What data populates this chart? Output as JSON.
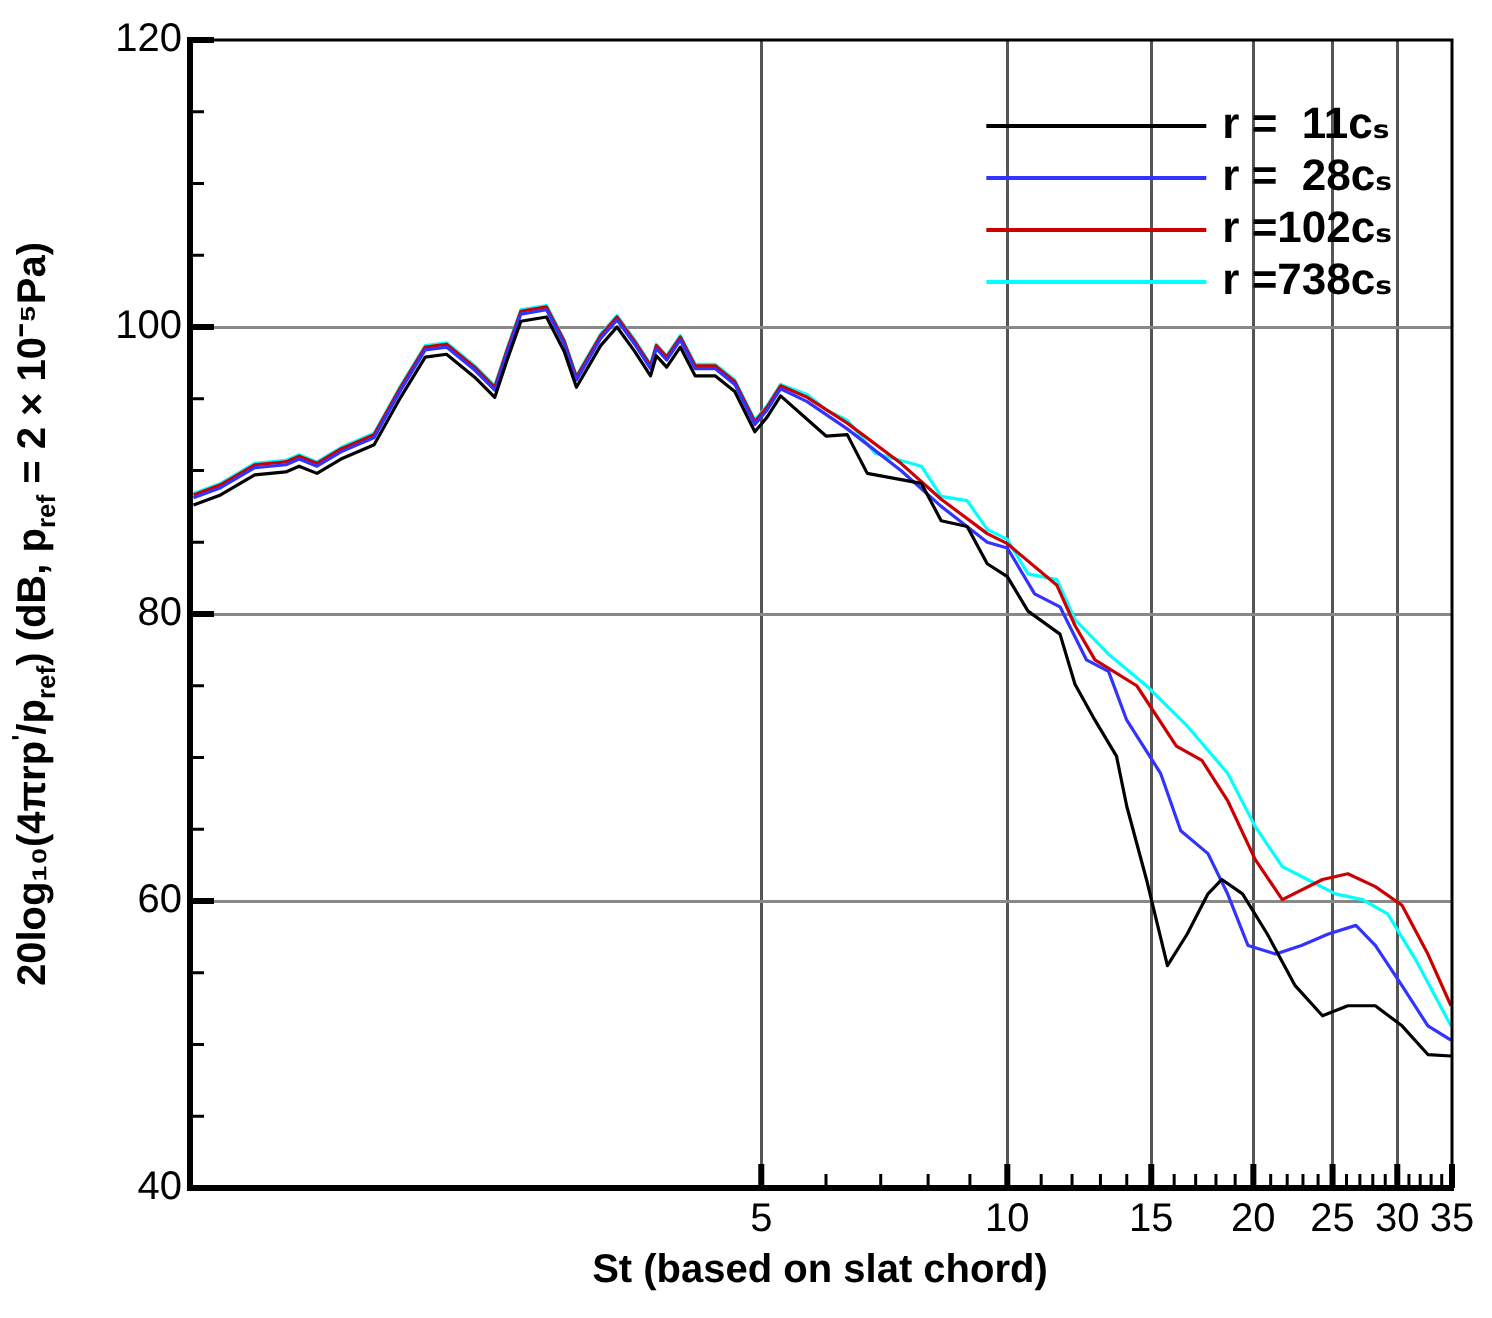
{
  "chart_data": {
    "type": "line",
    "xlabel": "St (based on slat chord)",
    "ylabel": "20log₁₀(4πrp$^{'}$/p$_{ref}$) (dB, p$_{ref}$ = 2 × 10⁻⁵Pa)",
    "log": "x",
    "grid": true,
    "legend": "top right",
    "marker": "none",
    "line_style": "solid",
    "xlim": [
      1,
      35
    ],
    "xticks": [
      5,
      {
        "value": 6,
        "label": null
      },
      {
        "value": 7,
        "label": null
      },
      {
        "value": 8,
        "label": null
      },
      {
        "value": 9,
        "label": null
      },
      10,
      {
        "value": 11,
        "label": null
      },
      {
        "value": 12,
        "label": null
      },
      {
        "value": 13,
        "label": null
      },
      {
        "value": 14,
        "label": null
      },
      15,
      {
        "value": 16,
        "label": null
      },
      {
        "value": 17,
        "label": null
      },
      {
        "value": 18,
        "label": null
      },
      {
        "value": 19,
        "label": null
      },
      20,
      {
        "value": 21,
        "label": null
      },
      {
        "value": 22,
        "label": null
      },
      {
        "value": 23,
        "label": null
      },
      {
        "value": 24,
        "label": null
      },
      25,
      {
        "value": 26,
        "label": null
      },
      {
        "value": 27,
        "label": null
      },
      {
        "value": 28,
        "label": null
      },
      {
        "value": 29,
        "label": null
      },
      30,
      {
        "value": 31,
        "label": null
      },
      {
        "value": 32,
        "label": null
      },
      {
        "value": 33,
        "label": null
      },
      {
        "value": 34,
        "label": null
      },
      35
    ],
    "ylim": [
      40,
      120
    ],
    "yticks": [
      40,
      {
        "value": 45,
        "label": null
      },
      {
        "value": 50,
        "label": null
      },
      {
        "value": 55,
        "label": null
      },
      60,
      {
        "value": 65,
        "label": null
      },
      {
        "value": 70,
        "label": null
      },
      {
        "value": 75,
        "label": null
      },
      80,
      {
        "value": 85,
        "label": null
      },
      {
        "value": 90,
        "label": null
      },
      {
        "value": 95,
        "label": null
      },
      100,
      {
        "value": 105,
        "label": null
      },
      {
        "value": 110,
        "label": null
      },
      {
        "value": 115,
        "label": null
      },
      120
    ],
    "series": [
      {
        "name": "r =  11cₛ",
        "color": "#000000",
        "x": [
          1.01,
          1.09,
          1.2,
          1.31,
          1.36,
          1.43,
          1.53,
          1.68,
          1.81,
          1.94,
          2.06,
          2.23,
          2.36,
          2.44,
          2.54,
          2.73,
          2.87,
          2.97,
          3.18,
          3.33,
          3.5,
          3.66,
          3.72,
          3.83,
          3.98,
          4.15,
          4.39,
          4.64,
          4.91,
          5.08,
          5.28,
          6.0,
          6.37,
          6.74,
          7.85,
          8.3,
          8.93,
          9.45,
          10,
          10.6,
          11.6,
          12.1,
          12.8,
          13.6,
          14.0,
          14.8,
          15.7,
          16.6,
          17.6,
          18.3,
          19.4,
          20.8,
          22.5,
          24.3,
          26.1,
          28.2,
          30.4,
          32.7,
          34.9
        ],
        "values": [
          87.6,
          88.3,
          89.7,
          89.9,
          90.3,
          89.8,
          90.8,
          91.8,
          95.1,
          97.9,
          98.1,
          96.5,
          95.1,
          97.6,
          100.4,
          100.7,
          98.3,
          95.8,
          98.7,
          100.0,
          98.3,
          96.6,
          98.0,
          97.2,
          98.6,
          96.6,
          96.6,
          95.5,
          92.7,
          93.7,
          95.2,
          92.4,
          92.5,
          89.8,
          89.1,
          86.5,
          86.1,
          83.5,
          82.6,
          80.2,
          78.6,
          75.1,
          72.6,
          70.1,
          66.6,
          61.5,
          55.5,
          57.7,
          60.5,
          61.5,
          60.5,
          57.7,
          54.1,
          52.0,
          52.7,
          52.7,
          51.3,
          49.3,
          49.2
        ]
      },
      {
        "name": "r =  28cₛ",
        "color": "#3333ff",
        "x": [
          1.01,
          1.09,
          1.2,
          1.31,
          1.36,
          1.43,
          1.53,
          1.68,
          1.81,
          1.94,
          2.06,
          2.23,
          2.36,
          2.44,
          2.54,
          2.73,
          2.87,
          2.97,
          3.18,
          3.33,
          3.5,
          3.66,
          3.72,
          3.83,
          3.98,
          4.15,
          4.39,
          4.64,
          4.91,
          5.08,
          5.28,
          5.69,
          6.37,
          7.41,
          8.3,
          9.45,
          10,
          10.8,
          11.6,
          12.5,
          13.3,
          14.0,
          15.4,
          16.3,
          17.6,
          18.6,
          19.7,
          21.3,
          22.9,
          24.7,
          26.7,
          28.2,
          30.4,
          32.7,
          34.9
        ],
        "values": [
          88.1,
          88.8,
          90.2,
          90.4,
          90.8,
          90.3,
          91.3,
          92.3,
          95.6,
          98.4,
          98.6,
          97.0,
          95.6,
          98.1,
          100.9,
          101.2,
          98.8,
          96.3,
          99.2,
          100.5,
          98.8,
          97.1,
          98.5,
          97.7,
          99.1,
          97.1,
          97.1,
          96.0,
          93.2,
          94.2,
          95.7,
          94.8,
          92.9,
          90.0,
          87.5,
          85.0,
          84.6,
          81.4,
          80.5,
          76.8,
          76.0,
          72.6,
          68.9,
          64.9,
          63.3,
          60.5,
          56.9,
          56.3,
          56.9,
          57.7,
          58.3,
          56.9,
          54.1,
          51.3,
          50.3
        ]
      },
      {
        "name": "r =102cₛ",
        "color": "#cc0000",
        "x": [
          1.01,
          1.09,
          1.2,
          1.31,
          1.36,
          1.43,
          1.53,
          1.68,
          1.81,
          1.94,
          2.06,
          2.23,
          2.36,
          2.44,
          2.54,
          2.73,
          2.87,
          2.97,
          3.18,
          3.33,
          3.5,
          3.66,
          3.72,
          3.83,
          3.98,
          4.15,
          4.39,
          4.64,
          4.91,
          5.08,
          5.28,
          5.69,
          6.37,
          7.41,
          8.3,
          9.45,
          10,
          11.5,
          12.1,
          12.8,
          14.4,
          16.1,
          17.3,
          18.6,
          20.1,
          21.7,
          24.3,
          26.1,
          28.2,
          30.4,
          32.7,
          34.9
        ],
        "values": [
          88.3,
          89.0,
          90.4,
          90.6,
          91.0,
          90.5,
          91.5,
          92.5,
          95.8,
          98.6,
          98.8,
          97.2,
          95.8,
          98.3,
          101.1,
          101.4,
          99.0,
          96.5,
          99.4,
          100.7,
          99.0,
          97.3,
          98.7,
          97.9,
          99.3,
          97.3,
          97.3,
          96.2,
          93.4,
          94.4,
          95.9,
          95.1,
          93.3,
          90.5,
          88.0,
          85.6,
          84.9,
          82.0,
          79.2,
          76.8,
          75.0,
          70.8,
          69.8,
          67.0,
          62.9,
          60.1,
          61.5,
          61.9,
          61.0,
          59.7,
          56.3,
          52.7
        ]
      },
      {
        "name": "r =738cₛ",
        "color": "#00ffff",
        "x": [
          1.01,
          1.09,
          1.2,
          1.31,
          1.36,
          1.43,
          1.53,
          1.68,
          1.81,
          1.94,
          2.06,
          2.23,
          2.36,
          2.44,
          2.54,
          2.73,
          2.87,
          2.97,
          3.18,
          3.33,
          3.5,
          3.66,
          3.72,
          3.83,
          3.98,
          4.15,
          4.39,
          4.64,
          4.91,
          5.08,
          5.28,
          5.69,
          6.01,
          6.37,
          6.89,
          7.41,
          7.85,
          8.3,
          8.93,
          9.45,
          10,
          10.6,
          11.5,
          12.1,
          13.3,
          14.8,
          16.6,
          18.6,
          20.1,
          21.7,
          23.3,
          25.2,
          27.2,
          29.2,
          31.6,
          34.9
        ],
        "values": [
          88.4,
          89.1,
          90.5,
          90.7,
          91.1,
          90.6,
          91.6,
          92.6,
          95.9,
          98.7,
          98.9,
          97.3,
          95.9,
          98.4,
          101.2,
          101.5,
          99.1,
          96.6,
          99.5,
          100.8,
          99.1,
          97.4,
          98.8,
          98.0,
          99.4,
          97.4,
          97.4,
          96.3,
          93.5,
          94.5,
          96.0,
          95.3,
          94.2,
          93.5,
          91.2,
          90.7,
          90.3,
          88.2,
          87.9,
          85.9,
          85.2,
          82.8,
          82.4,
          79.6,
          77.2,
          75.0,
          72.2,
          68.9,
          65.2,
          62.4,
          61.5,
          60.5,
          60.1,
          59.1,
          55.9,
          51.3
        ]
      }
    ]
  }
}
